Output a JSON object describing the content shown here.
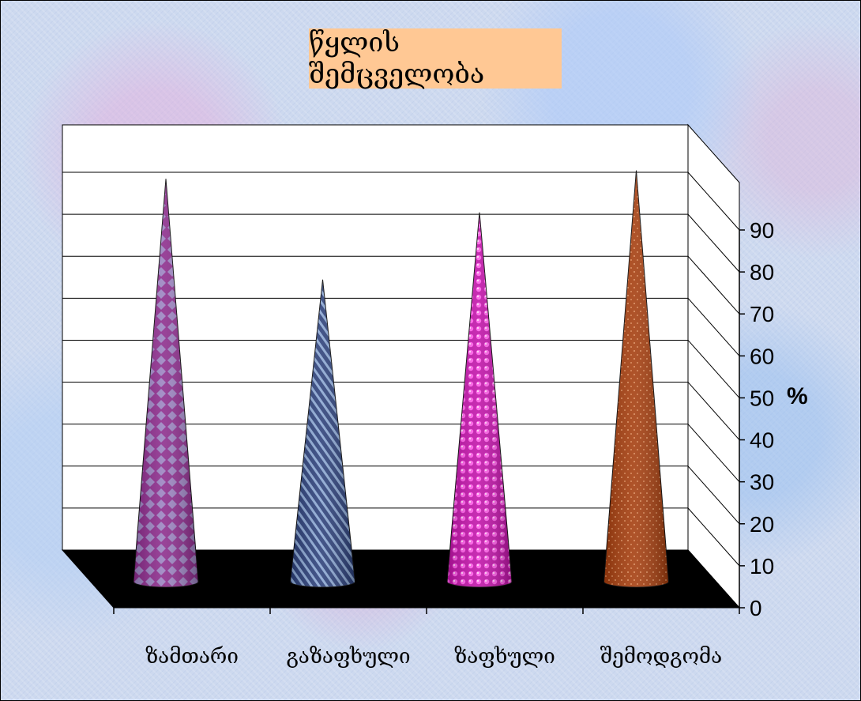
{
  "chart_data": {
    "type": "bar",
    "bar_shape": "cone",
    "view": "3d",
    "title": "წყლის შემცველობა",
    "categories": [
      "ზამთარი",
      "გაზაფხული",
      "ზაფხული",
      "შემოდგომა"
    ],
    "values": [
      89,
      65,
      81,
      91
    ],
    "ylabel": "%",
    "ylim": [
      0,
      90
    ],
    "yticks": [
      0,
      10,
      20,
      30,
      40,
      50,
      60,
      70,
      80,
      90
    ],
    "grid": true,
    "legend": "none",
    "colors": {
      "series": [
        "#8b2a8b",
        "#2a3e78",
        "#d015b8",
        "#a43c0c"
      ],
      "title_background": "#ffc894",
      "floor": "#000000",
      "wall": "#ffffff"
    }
  }
}
